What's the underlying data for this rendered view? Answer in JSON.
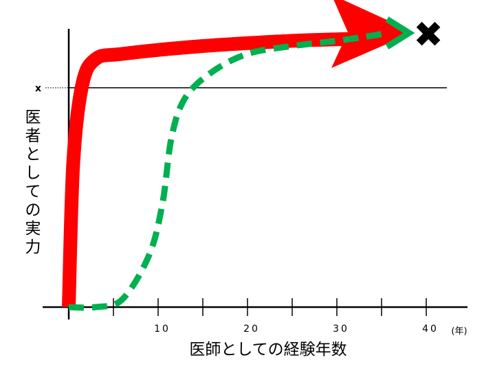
{
  "chart_data": {
    "type": "line",
    "x_axis": {
      "label": "医師としての経験年数",
      "unit": "(年)",
      "tick_labels": [
        "10",
        "20",
        "30",
        "40"
      ],
      "ticks": [
        5,
        10,
        15,
        20,
        25,
        30,
        35,
        40
      ],
      "range": [
        0,
        43
      ]
    },
    "y_axis": {
      "label": "医者としての実力",
      "marker_label": "x",
      "marker_level": 0.84,
      "range": [
        0,
        1.15
      ]
    },
    "grid": false,
    "series": [
      {
        "style": "solid-thick-arrow",
        "color": "#ff0000",
        "points": [
          [
            0,
            0
          ],
          [
            0.5,
            0.55
          ],
          [
            1.5,
            0.85
          ],
          [
            3,
            0.95
          ],
          [
            6,
            0.97
          ],
          [
            15,
            1.0
          ],
          [
            25,
            1.02
          ],
          [
            33,
            1.03
          ],
          [
            38,
            1.05
          ]
        ]
      },
      {
        "style": "dashed-arrow",
        "color": "#00b050",
        "end_marker": "✖",
        "points": [
          [
            0,
            0
          ],
          [
            3,
            0.0
          ],
          [
            6,
            0.03
          ],
          [
            9,
            0.2
          ],
          [
            10.5,
            0.4
          ],
          [
            11.5,
            0.65
          ],
          [
            13,
            0.8
          ],
          [
            16,
            0.9
          ],
          [
            20,
            0.97
          ],
          [
            25,
            1.0
          ],
          [
            30,
            1.02
          ],
          [
            34,
            1.04
          ],
          [
            37,
            1.05
          ]
        ]
      }
    ]
  }
}
